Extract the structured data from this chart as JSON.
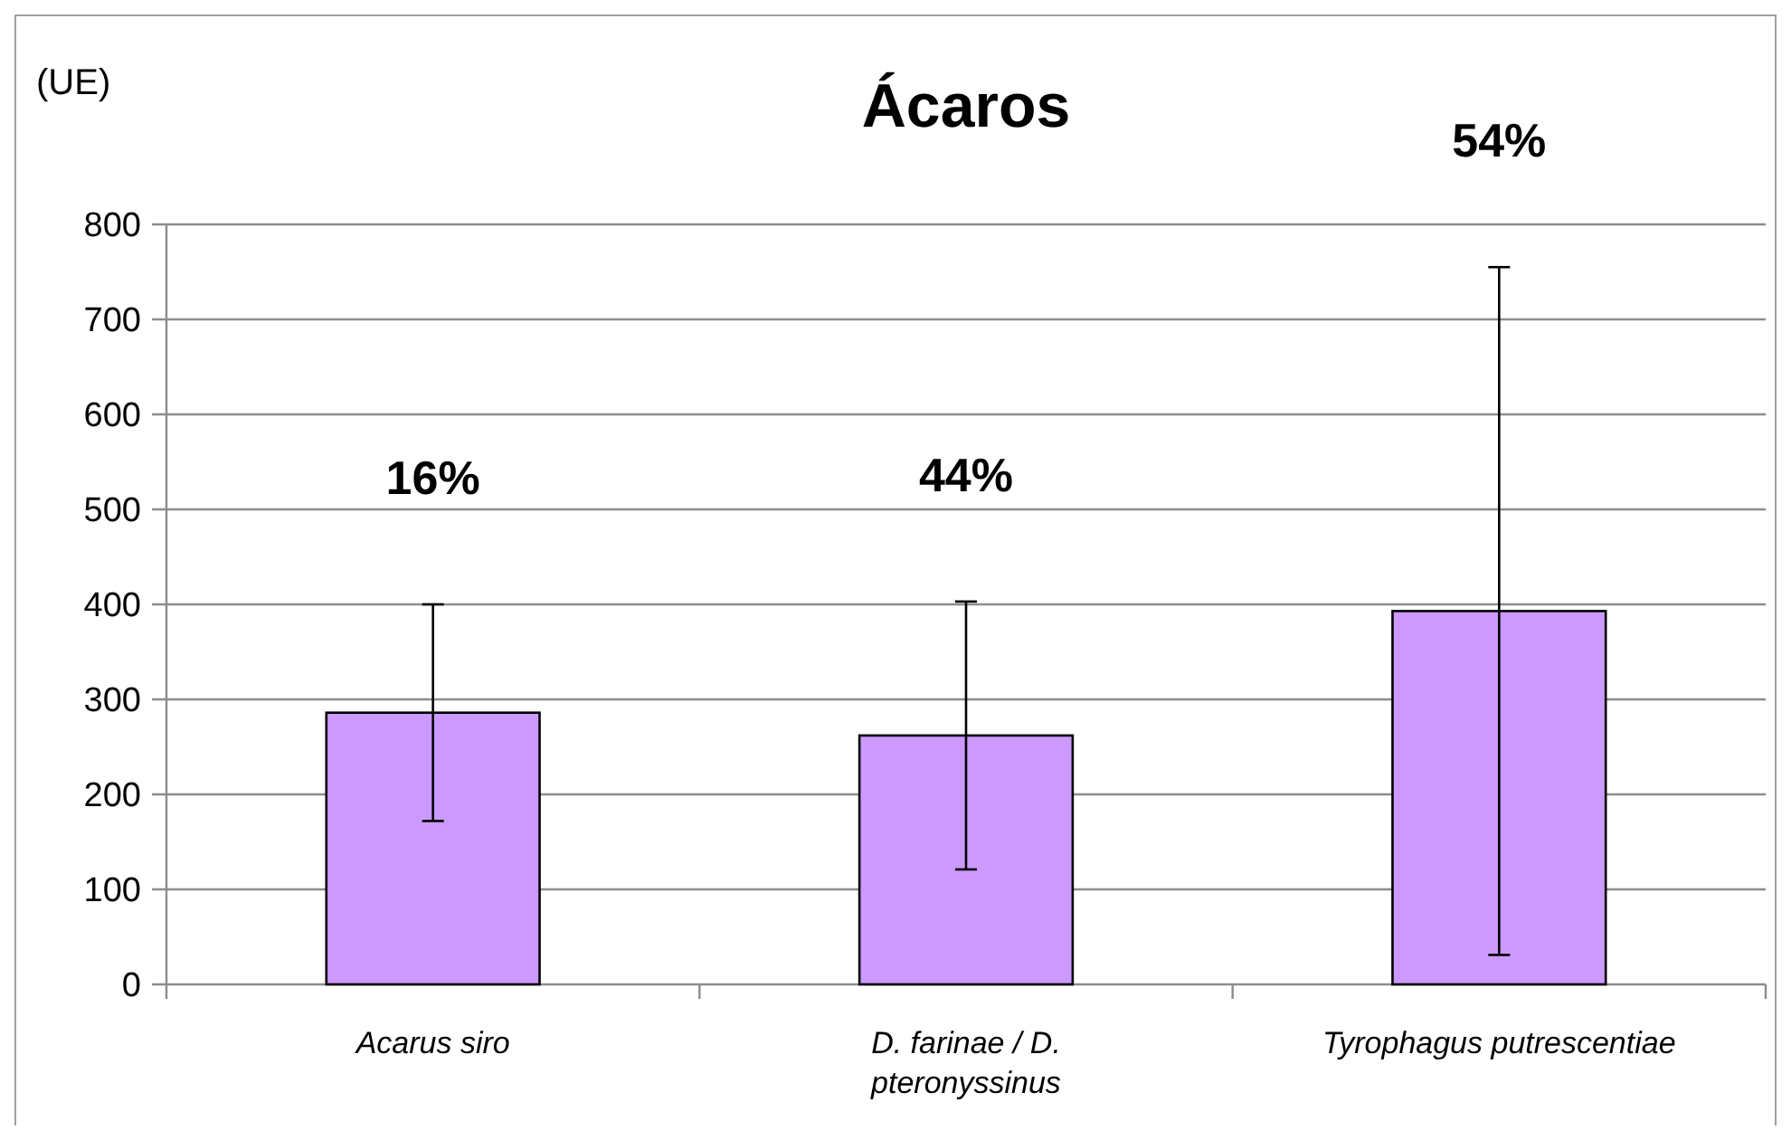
{
  "chart_data": {
    "type": "bar",
    "title": "Ácaros",
    "ylabel": "(UE)",
    "categories": [
      "Acarus siro",
      "D. farinae / D. pteronyssinus",
      "Tyrophagus putrescentiae"
    ],
    "values": [
      286,
      262,
      393
    ],
    "errors": [
      114,
      141,
      362
    ],
    "color": "#cc99ff",
    "ylim": [
      0,
      800
    ],
    "yticks": [
      0,
      100,
      200,
      300,
      400,
      500,
      600,
      700,
      800
    ],
    "grid": "y",
    "annotations": [
      "16%",
      "44%",
      "54%"
    ]
  }
}
